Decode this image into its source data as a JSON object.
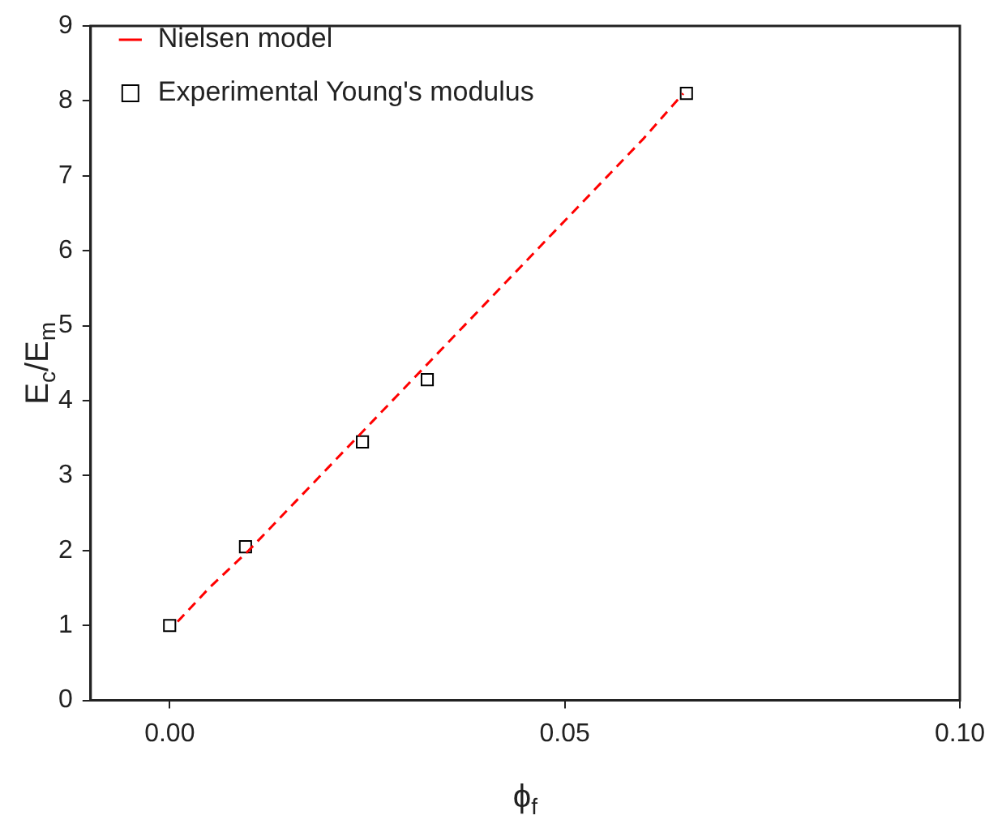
{
  "chart_data": {
    "type": "scatter",
    "xlabel": "ϕ$_{f}$",
    "ylabel": "E$_{c}$/E$_{m}$",
    "xlim": [
      -0.01,
      0.1
    ],
    "xticks": [
      {
        "value": 0,
        "label": "0.00"
      },
      0.05,
      {
        "value": 0.1,
        "label": "0.10"
      }
    ],
    "ylim": [
      0,
      9
    ],
    "yticks": [
      0,
      1,
      2,
      3,
      4,
      5,
      6,
      7,
      8,
      9
    ],
    "grid": false,
    "legend": "top left",
    "series": [
      {
        "name": "Nielsen model",
        "type": "line",
        "color": "#ff0000",
        "line_style": "dashed",
        "marker": "none",
        "x": [
          0.001,
          0.005,
          0.01,
          0.02,
          0.03,
          0.04,
          0.05,
          0.06,
          0.065
        ],
        "values": [
          1.05,
          1.5,
          2.0,
          3.1,
          4.2,
          5.3,
          6.4,
          7.5,
          8.1
        ]
      },
      {
        "name": "Experimental Young's modulus",
        "type": "scatter",
        "color": "#000000",
        "marker": "square",
        "x": [
          0,
          0.0096,
          0.0244,
          0.0326,
          0.0654
        ],
        "values": [
          1.0,
          2.05,
          3.45,
          4.28,
          8.1
        ]
      }
    ]
  }
}
